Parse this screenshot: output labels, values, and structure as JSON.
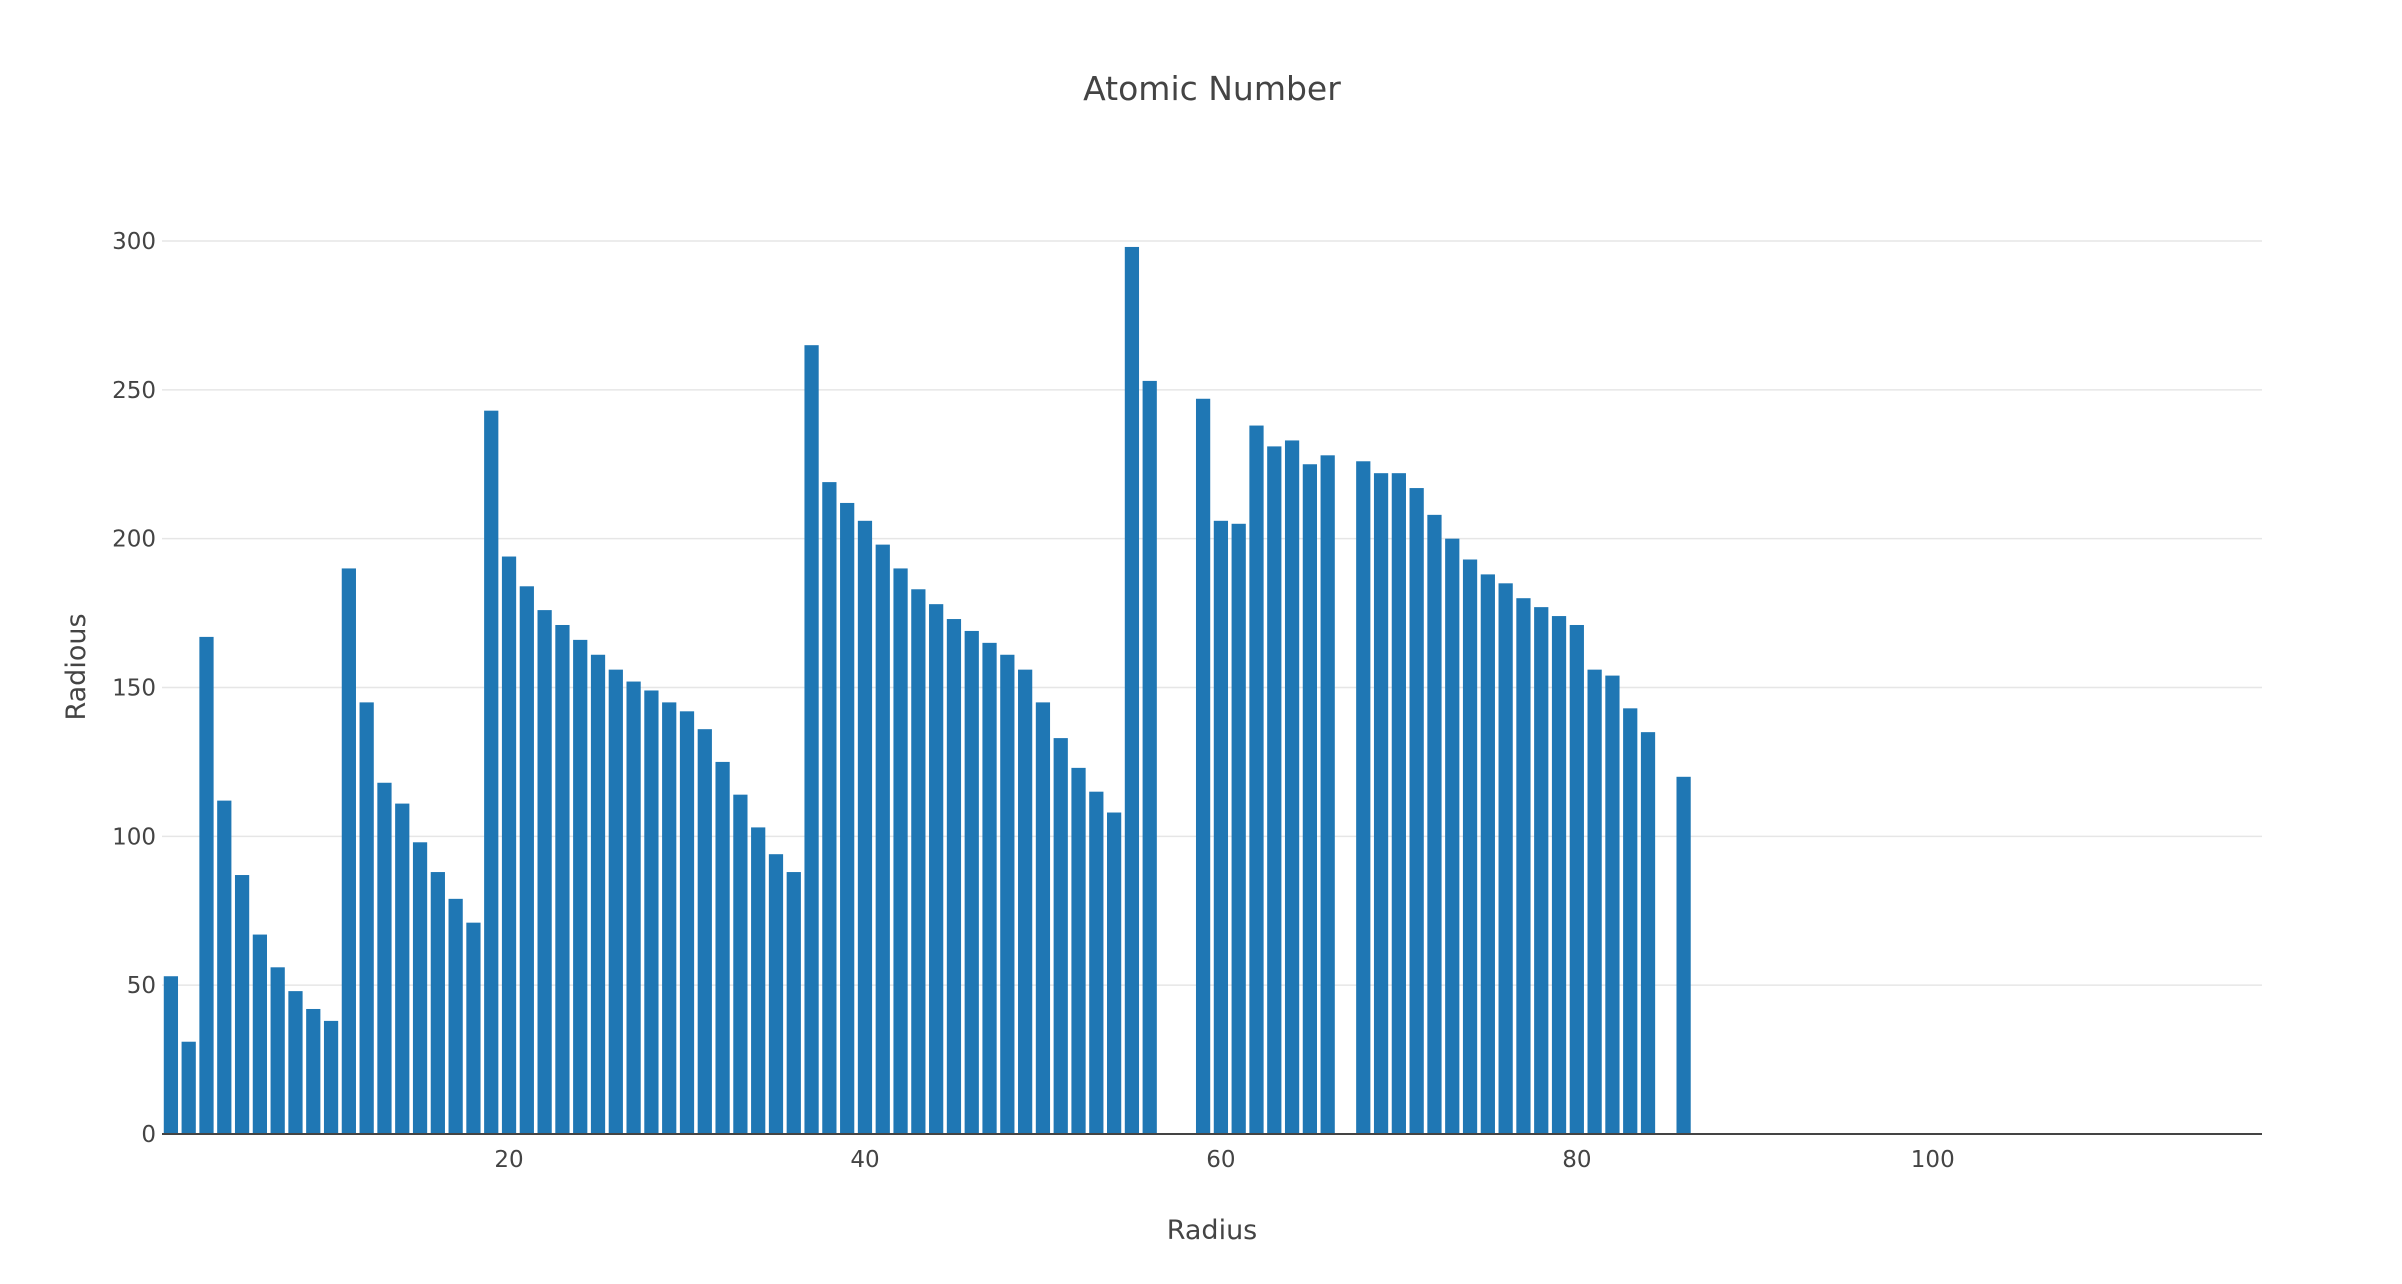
{
  "chart_data": {
    "type": "bar",
    "title": "Atomic Number",
    "xlabel": "Radius",
    "ylabel": "Radious",
    "xlim": [
      0.5,
      118.5
    ],
    "ylim": [
      0,
      300
    ],
    "x_ticks": [
      20,
      40,
      60,
      80,
      100
    ],
    "y_ticks": [
      0,
      50,
      100,
      150,
      200,
      250,
      300
    ],
    "grid": true,
    "legend": "none",
    "bar_color": "#1f77b4",
    "x": [
      1,
      2,
      3,
      4,
      5,
      6,
      7,
      8,
      9,
      10,
      11,
      12,
      13,
      14,
      15,
      16,
      17,
      18,
      19,
      20,
      21,
      22,
      23,
      24,
      25,
      26,
      27,
      28,
      29,
      30,
      31,
      32,
      33,
      34,
      35,
      36,
      37,
      38,
      39,
      40,
      41,
      42,
      43,
      44,
      45,
      46,
      47,
      48,
      49,
      50,
      51,
      52,
      53,
      54,
      55,
      56,
      57,
      58,
      59,
      60,
      61,
      62,
      63,
      64,
      65,
      66,
      67,
      68,
      69,
      70,
      71,
      72,
      73,
      74,
      75,
      76,
      77,
      78,
      79,
      80,
      81,
      82,
      83,
      84,
      85,
      86
    ],
    "values": [
      53,
      31,
      167,
      112,
      87,
      67,
      56,
      48,
      42,
      38,
      190,
      145,
      118,
      111,
      98,
      88,
      79,
      71,
      243,
      194,
      184,
      176,
      171,
      166,
      161,
      156,
      152,
      149,
      145,
      142,
      136,
      125,
      114,
      103,
      94,
      88,
      265,
      219,
      212,
      206,
      198,
      190,
      183,
      178,
      173,
      169,
      165,
      161,
      156,
      145,
      133,
      123,
      115,
      108,
      298,
      253,
      0,
      0,
      247,
      206,
      205,
      238,
      231,
      233,
      225,
      228,
      0,
      226,
      222,
      222,
      217,
      208,
      200,
      193,
      188,
      185,
      180,
      177,
      174,
      171,
      156,
      154,
      143,
      135,
      0,
      120
    ]
  }
}
